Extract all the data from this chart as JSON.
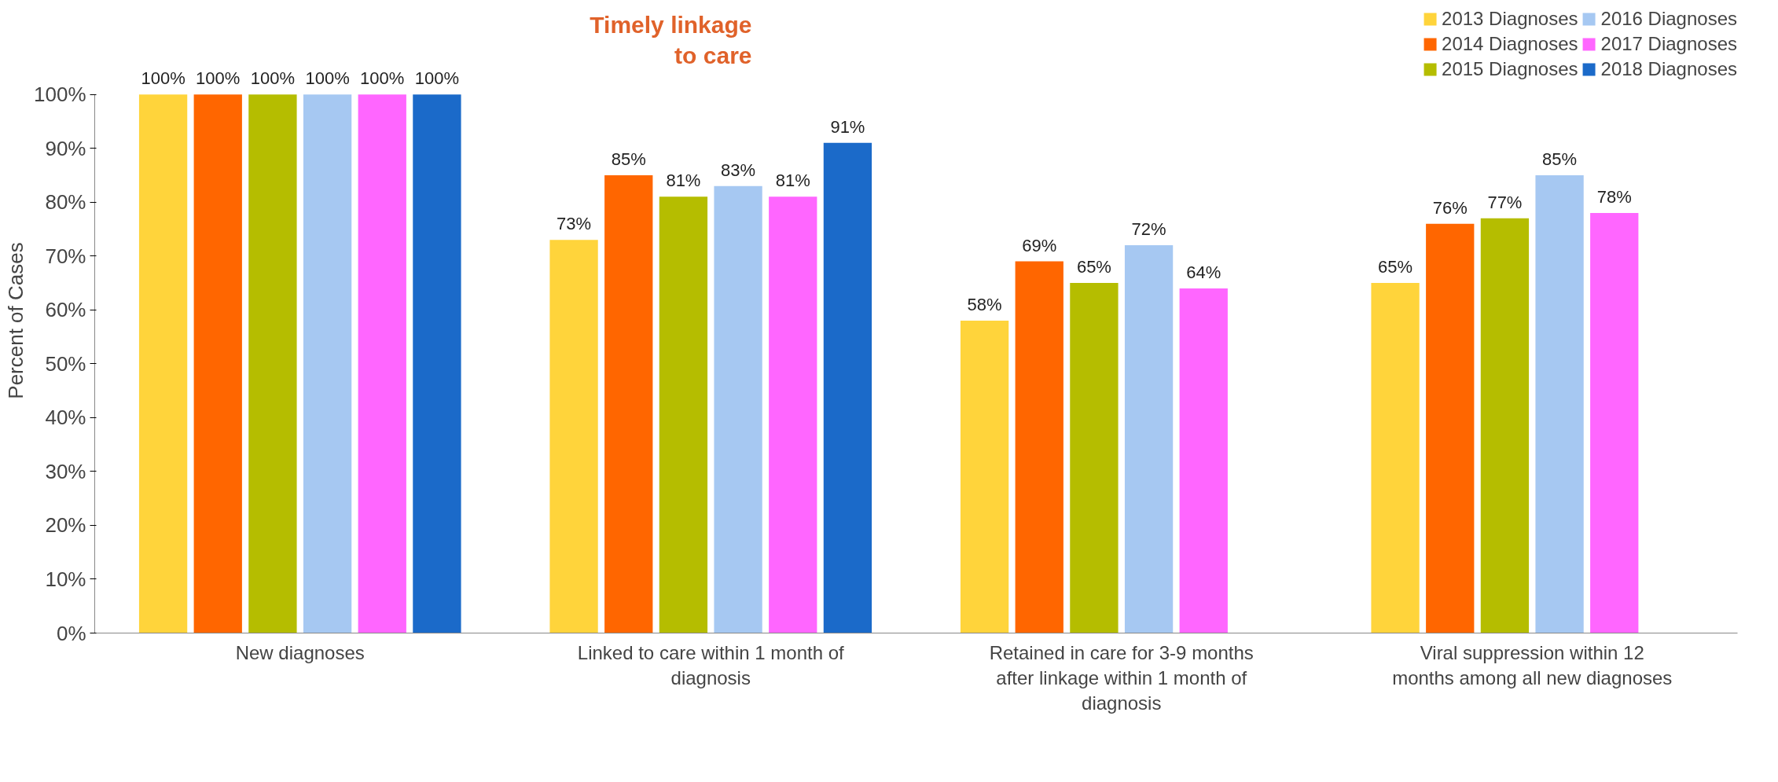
{
  "chart_data": {
    "type": "bar",
    "ylabel": "Percent of Cases",
    "categories": [
      "New diagnoses",
      "Linked to care within 1 month of diagnosis",
      "Retained in care for 3-9 months after linkage within 1 month of diagnosis",
      "Viral suppression within 12 months among all new diagnoses"
    ],
    "series": [
      {
        "name": "2013 Diagnoses",
        "color": "#ffd43b",
        "values": [
          100,
          73,
          58,
          65
        ],
        "value_labels": [
          "100%",
          "73%",
          "58%",
          "65%"
        ]
      },
      {
        "name": "2014 Diagnoses",
        "color": "#ff6600",
        "values": [
          100,
          85,
          69,
          76
        ],
        "value_labels": [
          "100%",
          "85%",
          "69%",
          "76%"
        ]
      },
      {
        "name": "2015 Diagnoses",
        "color": "#b5bd00",
        "values": [
          100,
          81,
          65,
          77
        ],
        "value_labels": [
          "100%",
          "81%",
          "65%",
          "77%"
        ]
      },
      {
        "name": "2016 Diagnoses",
        "color": "#a6c8f2",
        "values": [
          100,
          83,
          72,
          85
        ],
        "value_labels": [
          "100%",
          "83%",
          "72%",
          "85%"
        ]
      },
      {
        "name": "2017 Diagnoses",
        "color": "#ff66ff",
        "values": [
          100,
          81,
          64,
          78
        ],
        "value_labels": [
          "100%",
          "81%",
          "64%",
          "78%"
        ]
      },
      {
        "name": "2018 Diagnoses",
        "color": "#1b6ac9",
        "values": [
          100,
          91,
          null,
          null
        ],
        "value_labels": [
          "100%",
          "91%",
          null,
          null
        ]
      }
    ],
    "ylim": [
      0,
      100
    ],
    "yticks": [
      {
        "value": 0,
        "label": "0%"
      },
      {
        "value": 10,
        "label": "10%"
      },
      {
        "value": 20,
        "label": "20%"
      },
      {
        "value": 30,
        "label": "30%"
      },
      {
        "value": 40,
        "label": "40%"
      },
      {
        "value": 50,
        "label": "50%"
      },
      {
        "value": 60,
        "label": "60%"
      },
      {
        "value": 70,
        "label": "70%"
      },
      {
        "value": 80,
        "label": "80%"
      },
      {
        "value": 90,
        "label": "90%"
      },
      {
        "value": 100,
        "label": "100%"
      }
    ],
    "annotations": [
      "Timely linkage to care"
    ],
    "legend": "top right",
    "grid": false
  }
}
